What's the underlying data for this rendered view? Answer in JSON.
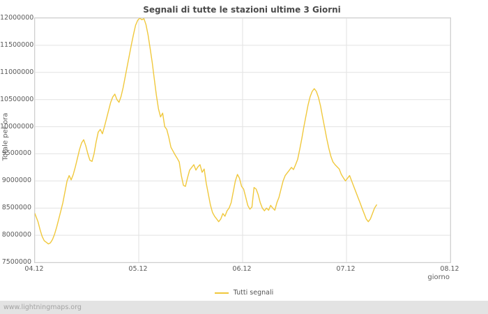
{
  "title": "Segnali di tutte le stazioni ultime 3 Giorni",
  "legend": {
    "label": "Tutti segnali"
  },
  "footer": {
    "text": "www.lightningmaps.org"
  },
  "colors": {
    "line": "#f0c83c",
    "grid": "#e2e2e2",
    "title_text": "#4a4a4a",
    "tick_text": "#5a5a5a",
    "footer_bg": "#e3e3e3",
    "footer_text": "#a3a3a3"
  },
  "chart_data": {
    "type": "line",
    "title": "Segnali di tutte le stazioni ultime 3 Giorni",
    "xlabel": "giorno",
    "ylabel": "Totale per ora",
    "xlim": [
      0,
      4
    ],
    "ylim": [
      7500000,
      12000000
    ],
    "grid": true,
    "legend_position": "bottom-center",
    "xticks": [
      {
        "v": 0,
        "label": "04.12"
      },
      {
        "v": 1,
        "label": "05.12"
      },
      {
        "v": 2,
        "label": "06.12"
      },
      {
        "v": 3,
        "label": "07.12"
      },
      {
        "v": 4,
        "label": "08.12"
      }
    ],
    "yticks": [
      {
        "v": 7500000,
        "label": "7500000"
      },
      {
        "v": 8000000,
        "label": "8000000"
      },
      {
        "v": 8500000,
        "label": "8500000"
      },
      {
        "v": 9000000,
        "label": "9000000"
      },
      {
        "v": 9500000,
        "label": "9500000"
      },
      {
        "v": 10000000,
        "label": "10000000"
      },
      {
        "v": 10500000,
        "label": "10500000"
      },
      {
        "v": 11000000,
        "label": "11000000"
      },
      {
        "v": 11500000,
        "label": "11500000"
      },
      {
        "v": 12000000,
        "label": "12000000"
      }
    ],
    "series": [
      {
        "name": "Tutti segnali",
        "color": "#f0c83c",
        "points": [
          [
            0.0,
            8400000
          ],
          [
            0.03,
            8250000
          ],
          [
            0.05,
            8100000
          ],
          [
            0.07,
            7980000
          ],
          [
            0.09,
            7900000
          ],
          [
            0.11,
            7870000
          ],
          [
            0.13,
            7840000
          ],
          [
            0.15,
            7860000
          ],
          [
            0.17,
            7920000
          ],
          [
            0.19,
            8020000
          ],
          [
            0.21,
            8150000
          ],
          [
            0.23,
            8300000
          ],
          [
            0.25,
            8450000
          ],
          [
            0.27,
            8600000
          ],
          [
            0.29,
            8800000
          ],
          [
            0.31,
            9000000
          ],
          [
            0.33,
            9100000
          ],
          [
            0.35,
            9020000
          ],
          [
            0.37,
            9120000
          ],
          [
            0.39,
            9260000
          ],
          [
            0.41,
            9420000
          ],
          [
            0.43,
            9580000
          ],
          [
            0.45,
            9700000
          ],
          [
            0.47,
            9760000
          ],
          [
            0.49,
            9650000
          ],
          [
            0.51,
            9500000
          ],
          [
            0.53,
            9380000
          ],
          [
            0.55,
            9360000
          ],
          [
            0.57,
            9500000
          ],
          [
            0.59,
            9720000
          ],
          [
            0.61,
            9900000
          ],
          [
            0.63,
            9950000
          ],
          [
            0.65,
            9870000
          ],
          [
            0.67,
            10000000
          ],
          [
            0.69,
            10150000
          ],
          [
            0.71,
            10300000
          ],
          [
            0.73,
            10450000
          ],
          [
            0.75,
            10550000
          ],
          [
            0.77,
            10600000
          ],
          [
            0.79,
            10500000
          ],
          [
            0.81,
            10450000
          ],
          [
            0.83,
            10560000
          ],
          [
            0.85,
            10720000
          ],
          [
            0.87,
            10920000
          ],
          [
            0.89,
            11120000
          ],
          [
            0.91,
            11320000
          ],
          [
            0.93,
            11520000
          ],
          [
            0.95,
            11700000
          ],
          [
            0.97,
            11870000
          ],
          [
            0.99,
            11960000
          ],
          [
            1.01,
            12000000
          ],
          [
            1.03,
            11970000
          ],
          [
            1.05,
            11990000
          ],
          [
            1.07,
            11880000
          ],
          [
            1.09,
            11690000
          ],
          [
            1.11,
            11440000
          ],
          [
            1.13,
            11180000
          ],
          [
            1.15,
            10880000
          ],
          [
            1.17,
            10580000
          ],
          [
            1.19,
            10330000
          ],
          [
            1.21,
            10180000
          ],
          [
            1.23,
            10250000
          ],
          [
            1.25,
            10000000
          ],
          [
            1.27,
            9950000
          ],
          [
            1.29,
            9800000
          ],
          [
            1.31,
            9620000
          ],
          [
            1.33,
            9550000
          ],
          [
            1.35,
            9480000
          ],
          [
            1.37,
            9420000
          ],
          [
            1.39,
            9350000
          ],
          [
            1.41,
            9100000
          ],
          [
            1.43,
            8920000
          ],
          [
            1.45,
            8900000
          ],
          [
            1.47,
            9060000
          ],
          [
            1.49,
            9200000
          ],
          [
            1.51,
            9250000
          ],
          [
            1.53,
            9300000
          ],
          [
            1.55,
            9200000
          ],
          [
            1.57,
            9260000
          ],
          [
            1.59,
            9300000
          ],
          [
            1.61,
            9160000
          ],
          [
            1.63,
            9220000
          ],
          [
            1.65,
            8960000
          ],
          [
            1.67,
            8760000
          ],
          [
            1.69,
            8560000
          ],
          [
            1.71,
            8420000
          ],
          [
            1.73,
            8350000
          ],
          [
            1.75,
            8300000
          ],
          [
            1.77,
            8250000
          ],
          [
            1.79,
            8300000
          ],
          [
            1.81,
            8400000
          ],
          [
            1.83,
            8350000
          ],
          [
            1.85,
            8450000
          ],
          [
            1.87,
            8500000
          ],
          [
            1.89,
            8600000
          ],
          [
            1.91,
            8800000
          ],
          [
            1.93,
            9000000
          ],
          [
            1.95,
            9120000
          ],
          [
            1.97,
            9050000
          ],
          [
            1.99,
            8900000
          ],
          [
            2.01,
            8850000
          ],
          [
            2.03,
            8700000
          ],
          [
            2.05,
            8550000
          ],
          [
            2.07,
            8480000
          ],
          [
            2.09,
            8520000
          ],
          [
            2.11,
            8880000
          ],
          [
            2.13,
            8850000
          ],
          [
            2.15,
            8750000
          ],
          [
            2.17,
            8600000
          ],
          [
            2.19,
            8500000
          ],
          [
            2.21,
            8450000
          ],
          [
            2.23,
            8500000
          ],
          [
            2.25,
            8460000
          ],
          [
            2.27,
            8550000
          ],
          [
            2.29,
            8500000
          ],
          [
            2.31,
            8460000
          ],
          [
            2.33,
            8600000
          ],
          [
            2.35,
            8700000
          ],
          [
            2.37,
            8850000
          ],
          [
            2.39,
            9000000
          ],
          [
            2.41,
            9100000
          ],
          [
            2.43,
            9150000
          ],
          [
            2.45,
            9200000
          ],
          [
            2.47,
            9250000
          ],
          [
            2.49,
            9210000
          ],
          [
            2.51,
            9300000
          ],
          [
            2.53,
            9400000
          ],
          [
            2.55,
            9580000
          ],
          [
            2.57,
            9780000
          ],
          [
            2.59,
            10000000
          ],
          [
            2.61,
            10200000
          ],
          [
            2.63,
            10400000
          ],
          [
            2.65,
            10550000
          ],
          [
            2.67,
            10650000
          ],
          [
            2.69,
            10700000
          ],
          [
            2.71,
            10650000
          ],
          [
            2.73,
            10540000
          ],
          [
            2.75,
            10380000
          ],
          [
            2.77,
            10180000
          ],
          [
            2.79,
            9980000
          ],
          [
            2.81,
            9780000
          ],
          [
            2.83,
            9600000
          ],
          [
            2.85,
            9450000
          ],
          [
            2.87,
            9350000
          ],
          [
            2.89,
            9300000
          ],
          [
            2.91,
            9260000
          ],
          [
            2.93,
            9220000
          ],
          [
            2.95,
            9120000
          ],
          [
            2.97,
            9060000
          ],
          [
            2.99,
            9000000
          ],
          [
            3.01,
            9050000
          ],
          [
            3.03,
            9100000
          ],
          [
            3.05,
            9000000
          ],
          [
            3.07,
            8900000
          ],
          [
            3.09,
            8800000
          ],
          [
            3.11,
            8700000
          ],
          [
            3.13,
            8600000
          ],
          [
            3.15,
            8500000
          ],
          [
            3.17,
            8400000
          ],
          [
            3.19,
            8300000
          ],
          [
            3.21,
            8250000
          ],
          [
            3.23,
            8300000
          ],
          [
            3.25,
            8400000
          ],
          [
            3.27,
            8500000
          ],
          [
            3.29,
            8560000
          ]
        ]
      }
    ]
  }
}
